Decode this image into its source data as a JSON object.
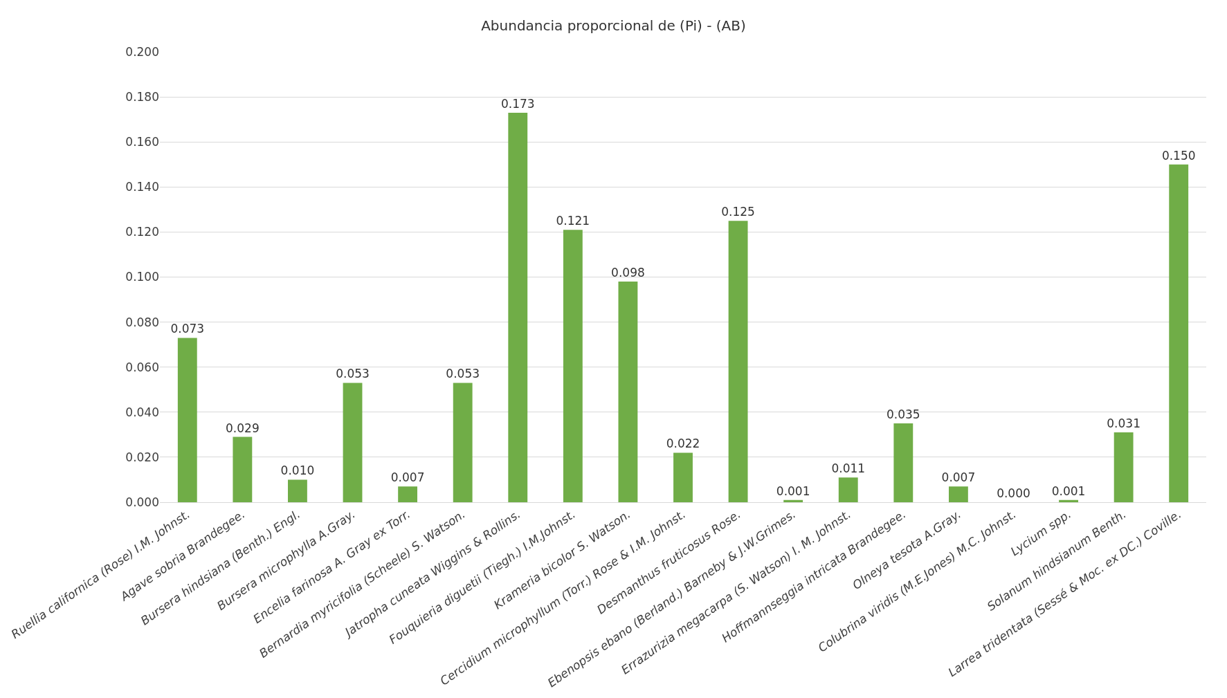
{
  "chart_data": {
    "type": "bar",
    "title": "Abundancia proporcional de (Pi) - (AB)",
    "categories": [
      "Ruellia californica (Rose) I.M. Johnst.",
      "Agave sobria Brandegee.",
      "Bursera hindsiana (Benth.) Engl.",
      "Bursera microphylla A.Gray.",
      "Encelia farinosa A. Gray ex Torr.",
      "Bernardia myricifolia (Scheele) S. Watson.",
      "Jatropha cuneata Wiggins & Rollins.",
      "Fouquieria diguetii (Tiegh.) I.M.Johnst.",
      "Krameria bicolor S. Watson.",
      "Cercidium microphyllum (Torr.) Rose & I.M. Johnst.",
      "Desmanthus fruticosus Rose.",
      "Ebenopsis ebano (Berland.) Barneby & J.W.Grimes.",
      "Errazurizia megacarpa (S. Watson) I. M. Johnst.",
      "Hoffmannseggia intricata Brandegee.",
      "Olneya tesota A.Gray.",
      "Colubrina viridis (M.E.Jones) M.C. Johnst.",
      "Lycium spp.",
      "Solanum hindsianum Benth.",
      "Larrea tridentata (Sessé & Moc. ex DC.) Coville."
    ],
    "values": [
      0.073,
      0.029,
      0.01,
      0.053,
      0.007,
      0.053,
      0.173,
      0.121,
      0.098,
      0.022,
      0.125,
      0.001,
      0.011,
      0.035,
      0.007,
      0.0,
      0.001,
      0.031,
      0.15
    ],
    "value_labels": [
      "0.073",
      "0.029",
      "0.010",
      "0.053",
      "0.007",
      "0.053",
      "0.173",
      "0.121",
      "0.098",
      "0.022",
      "0.125",
      "0.001",
      "0.011",
      "0.035",
      "0.007",
      "0.000",
      "0.001",
      "0.031",
      "0.150"
    ],
    "color": "#70ad47",
    "ylim": [
      0,
      0.2
    ],
    "yticks": [
      {
        "value": 0,
        "label": "0.000"
      },
      {
        "value": 0.02,
        "label": "0.020"
      },
      {
        "value": 0.04,
        "label": "0.040"
      },
      {
        "value": 0.06,
        "label": "0.060"
      },
      {
        "value": 0.08,
        "label": "0.080"
      },
      {
        "value": 0.1,
        "label": "0.100"
      },
      {
        "value": 0.12,
        "label": "0.120"
      },
      {
        "value": 0.14,
        "label": "0.140"
      },
      {
        "value": 0.16,
        "label": "0.160"
      },
      {
        "value": 0.18,
        "label": "0.180"
      },
      {
        "value": 0.2,
        "label": "0.200"
      }
    ],
    "grid": "y"
  }
}
